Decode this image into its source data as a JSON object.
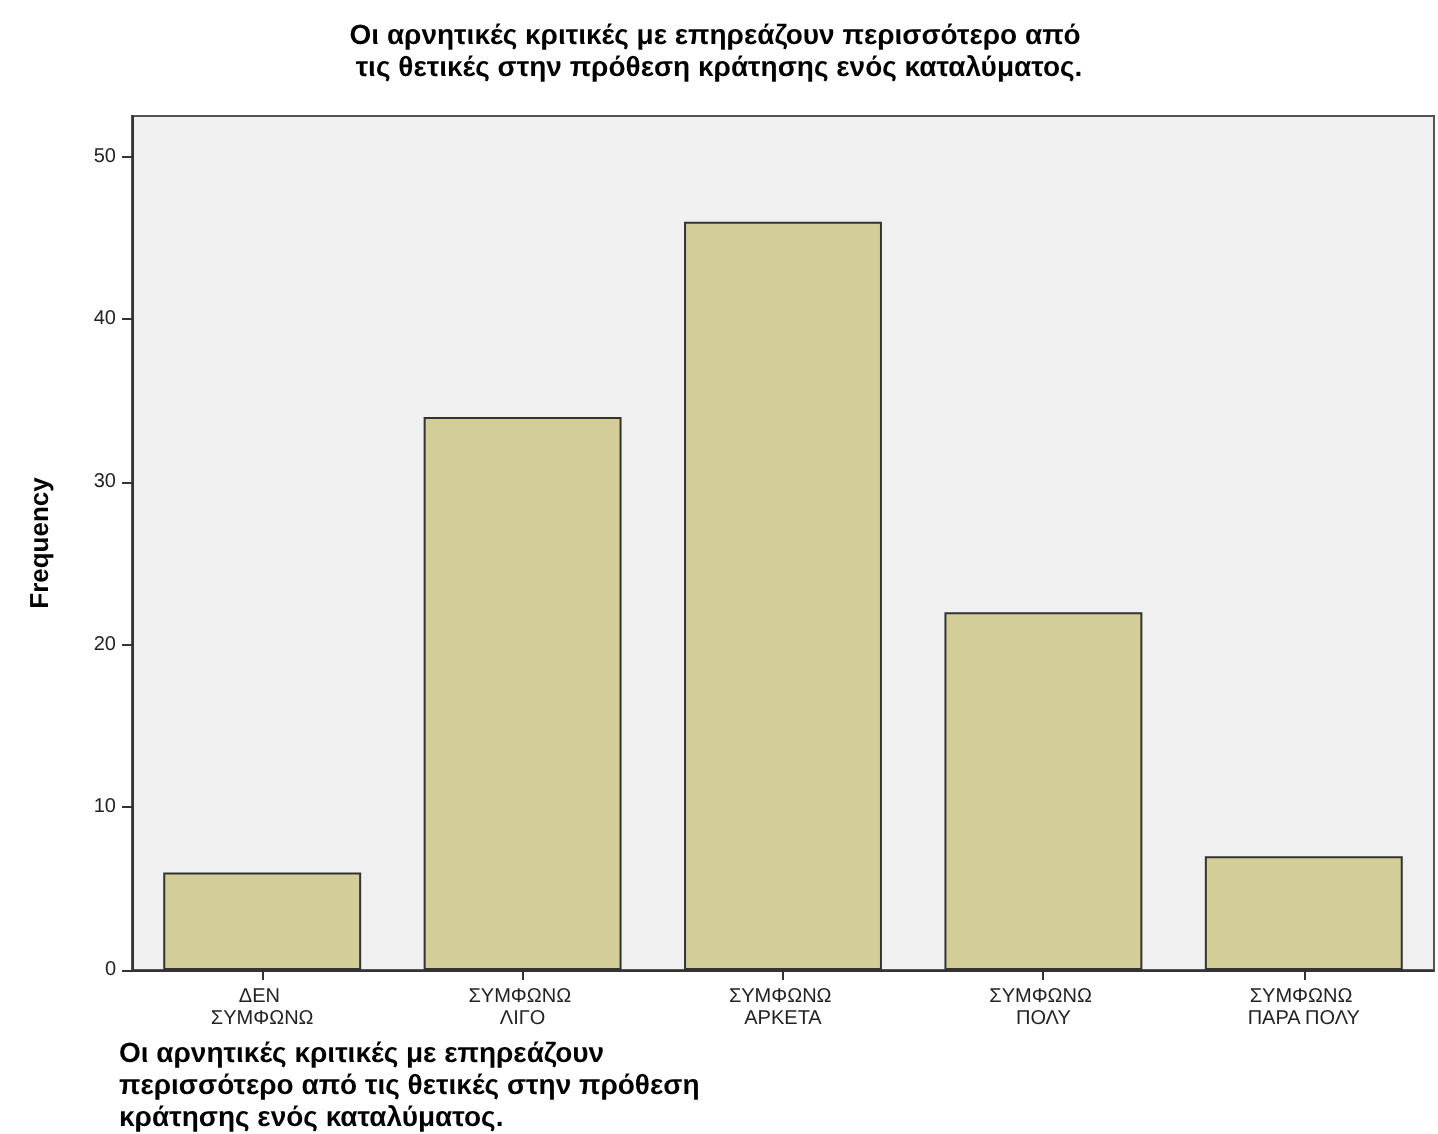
{
  "chart_data": {
    "type": "bar",
    "title": "Οι αρνητικές κριτικές με επηρεάζουν περισσότερο από τις θετικές στην πρόθεση κράτησης ενός καταλύματος.",
    "xlabel": "Οι αρνητικές κριτικές με επηρεάζουν περισσότερο από τις θετικές στην πρόθεση κράτησης ενός καταλύματος.",
    "ylabel": "Frequency",
    "categories": [
      "ΔΕΝ ΣΥΜΦΩΝΩ",
      "ΣΥΜΦΩΝΩ ΛΙΓΟ",
      "ΣΥΜΦΩΝΩ ΑΡΚΕΤΑ",
      "ΣΥΜΦΩΝΩ ΠΟΛΥ",
      "ΣΥΜΦΩΝΩ ΠΑΡΑ ΠΟΛΥ"
    ],
    "values": [
      6,
      34,
      46,
      22,
      7
    ],
    "color": "#d3ce98",
    "ylim": [
      0,
      52.5
    ],
    "yticks": [
      0,
      10,
      20,
      30,
      40,
      50
    ],
    "grid": false
  }
}
